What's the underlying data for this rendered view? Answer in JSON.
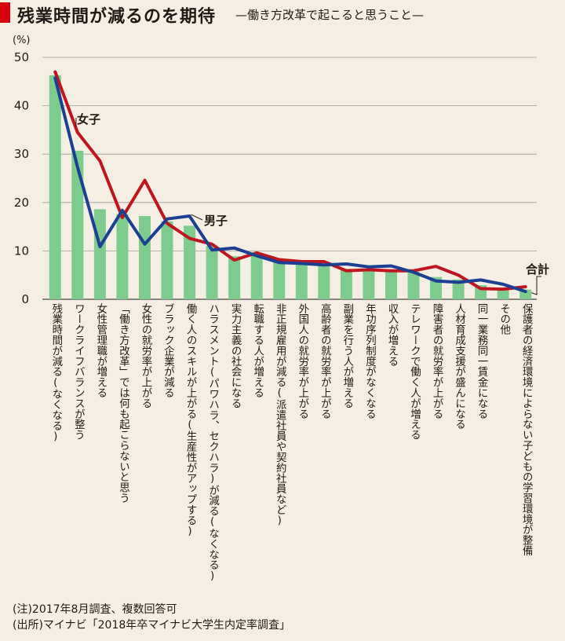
{
  "header": {
    "title": "残業時間が減るのを期待",
    "subtitle": "—働き方改革で起こると思うこと—"
  },
  "notes": {
    "note": "(注)2017年8月調査、複数回答可",
    "source": "(出所)マイナビ「2018年卒マイナビ大学生内定率調査」"
  },
  "chart_data": {
    "type": "bar",
    "title": "残業時間が減るのを期待",
    "subtitle": "—働き方改革で起こると思うこと—",
    "unit": "(%)",
    "ylim": [
      0,
      50
    ],
    "yticks": [
      0,
      10,
      20,
      30,
      40,
      50
    ],
    "grid": true,
    "categories": [
      "残業時間が減る(なくなる)",
      "ワークライフバランスが整う",
      "女性管理職が増える",
      "「働き方改革」では何も起こらないと思う",
      "女性の就労率が上がる",
      "ブラック企業が減る",
      "働く人のスキルが上がる(生産性がアップする)",
      "ハラスメント(パワハラ、セクハラ)が減る(なくなる)",
      "実力主義の社会になる",
      "転職する人が増える",
      "非正規雇用が減る(派遣社員や契約社員など)",
      "外国人の就労率が上がる",
      "高齢者の就労率が上がる",
      "副業を行う人が増える",
      "年功序列制度がなくなる",
      "収入が増える",
      "テレワークで働く人が増える",
      "障害者の就労率が上がる",
      "人材育成支援が盛んになる",
      "同一業務同一賃金になる",
      "その他",
      "保護者の経済環境によらない子どもの学習環境が整備"
    ],
    "series": [
      {
        "name": "合計",
        "kind": "bar",
        "color": "#7dcc8d",
        "values": [
          46.3,
          30.7,
          18.6,
          17.6,
          17.2,
          16.1,
          15.2,
          11.0,
          8.9,
          9.3,
          7.8,
          7.6,
          7.3,
          6.3,
          6.2,
          6.1,
          5.7,
          4.6,
          4.1,
          2.9,
          2.4,
          2.0
        ]
      },
      {
        "name": "女子",
        "kind": "line",
        "color": "#c0141e",
        "values": [
          47.0,
          34.5,
          28.6,
          16.9,
          24.6,
          15.7,
          12.6,
          11.4,
          8.1,
          9.6,
          8.2,
          7.8,
          7.8,
          5.9,
          6.1,
          5.9,
          5.9,
          6.8,
          5.0,
          2.2,
          2.1,
          2.6
        ]
      },
      {
        "name": "男子",
        "kind": "line",
        "color": "#1c3f94",
        "values": [
          45.7,
          27.3,
          10.9,
          18.4,
          11.4,
          16.6,
          17.2,
          10.2,
          10.6,
          9.0,
          7.6,
          7.4,
          7.1,
          7.3,
          6.7,
          6.9,
          5.6,
          3.8,
          3.5,
          4.0,
          3.1,
          1.6
        ]
      }
    ]
  }
}
